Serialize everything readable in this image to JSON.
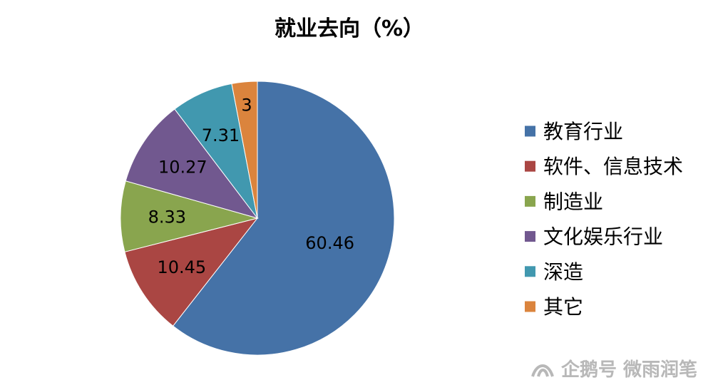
{
  "chart_data": {
    "type": "pie",
    "title": "就业去向（%）",
    "categories": [
      "教育行业",
      "软件、信息技术",
      "制造业",
      "文化娱乐行业",
      "深造",
      "其它"
    ],
    "values": [
      60.46,
      10.45,
      8.33,
      10.27,
      7.31,
      3
    ],
    "labels": [
      "60.46",
      "10.45",
      "8.33",
      "10.27",
      "7.31",
      "3"
    ],
    "colors": [
      "#4572a7",
      "#aa4643",
      "#89a54e",
      "#71588f",
      "#4198af",
      "#db843d"
    ],
    "start_angle_deg": 90,
    "direction": "clockwise",
    "legend_position": "right"
  },
  "watermark": {
    "text": "企鹅号 微雨润笔"
  }
}
